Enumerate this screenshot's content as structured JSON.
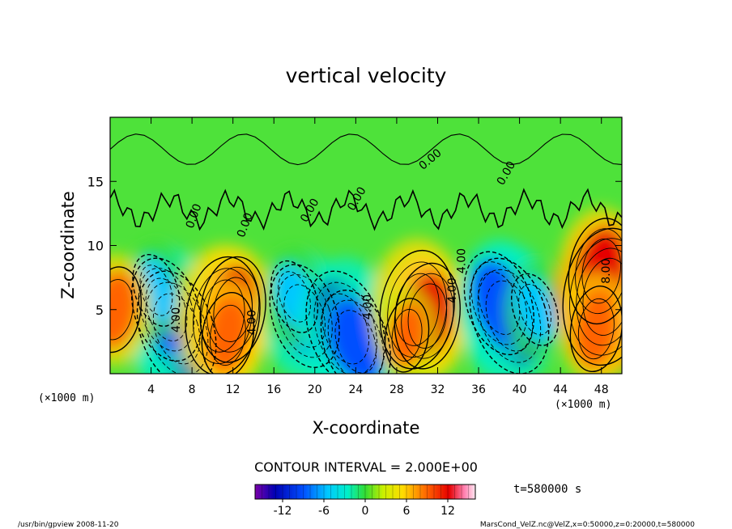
{
  "chart_data": {
    "type": "heatmap",
    "title": "vertical velocity",
    "xlabel": "X-coordinate",
    "ylabel": "Z-coordinate",
    "x_unit_left": "(×1000 m)",
    "x_unit_right": "(×1000 m)",
    "xlim": [
      0,
      50
    ],
    "ylim": [
      0,
      20
    ],
    "x_ticks": [
      "4",
      "8",
      "12",
      "16",
      "20",
      "24",
      "28",
      "32",
      "36",
      "40",
      "44",
      "48"
    ],
    "y_ticks": [
      "5",
      "10",
      "15"
    ],
    "contour_interval_text": "CONTOUR INTERVAL = 2.000E+00",
    "contour_labels": [
      "0.00",
      "0.00",
      "0.00",
      "0.00",
      "0.00",
      "0.00",
      "4.00",
      "4.00",
      "4.00",
      "4.00",
      "4.00",
      "8.00"
    ],
    "time_text": "t=580000 s",
    "colorbar": {
      "range": [
        -16,
        16
      ],
      "ticks": [
        "-12",
        "-6",
        "0",
        "6",
        "12"
      ],
      "colors": [
        "#7a00a8",
        "#0000b4",
        "#0050ff",
        "#00c8ff",
        "#00f0c8",
        "#32dc32",
        "#c8f000",
        "#ffdc00",
        "#ff6400",
        "#e60000",
        "#ff80b0",
        "#ffe6f0"
      ]
    },
    "cells": [
      {
        "x": 6.5,
        "z": 3.5,
        "w": -12
      },
      {
        "x": 5.5,
        "z": 5.0,
        "w": -10
      },
      {
        "x": 4.5,
        "z": 6.5,
        "w": -6
      },
      {
        "x": 11.0,
        "z": 4.5,
        "w": 12
      },
      {
        "x": 12.0,
        "z": 5.0,
        "w": 10
      },
      {
        "x": 11.5,
        "z": 3.0,
        "w": 8
      },
      {
        "x": 0.5,
        "z": 5.0,
        "w": 8
      },
      {
        "x": 19.0,
        "z": 4.5,
        "w": -10
      },
      {
        "x": 18.0,
        "z": 6.0,
        "w": -6
      },
      {
        "x": 23.0,
        "z": 3.5,
        "w": -12
      },
      {
        "x": 24.0,
        "z": 2.5,
        "w": -10
      },
      {
        "x": 30.0,
        "z": 5.0,
        "w": 12
      },
      {
        "x": 31.0,
        "z": 4.5,
        "w": 10
      },
      {
        "x": 29.0,
        "z": 3.0,
        "w": 6
      },
      {
        "x": 39.0,
        "z": 4.5,
        "w": -12
      },
      {
        "x": 38.0,
        "z": 5.5,
        "w": -10
      },
      {
        "x": 41.5,
        "z": 5.0,
        "w": -6
      },
      {
        "x": 48.5,
        "z": 6.0,
        "w": 14
      },
      {
        "x": 48.0,
        "z": 8.0,
        "w": 10
      },
      {
        "x": 47.5,
        "z": 3.5,
        "w": 8
      }
    ]
  },
  "footer": {
    "left": "/usr/bin/gpview  2008-11-20",
    "right": "MarsCond_VelZ.nc@VelZ,x=0:50000,z=0:20000,t=580000"
  }
}
